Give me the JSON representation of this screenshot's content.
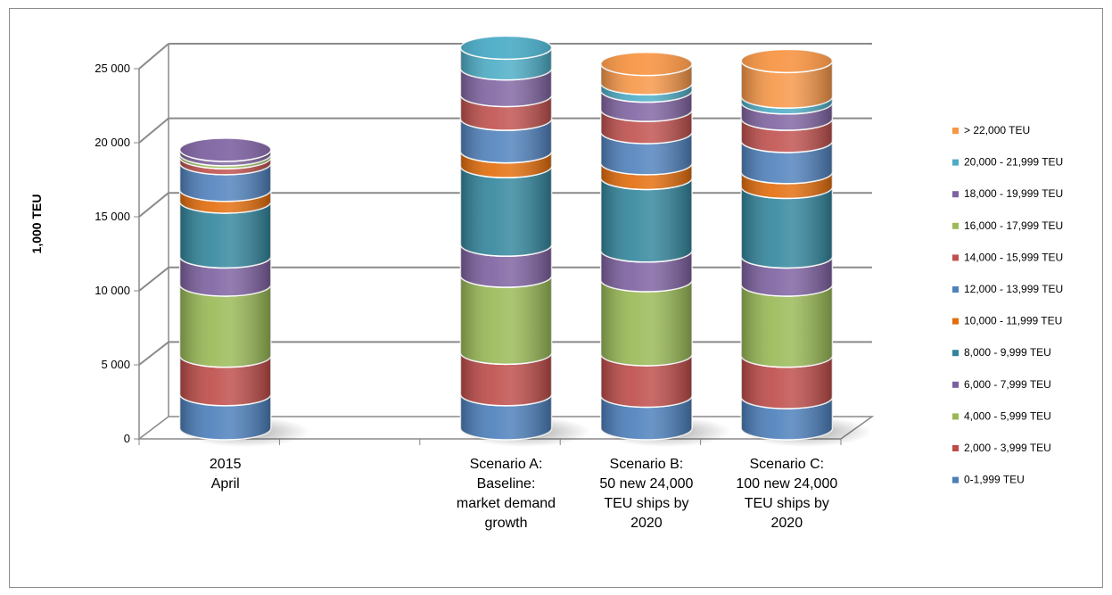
{
  "chart_data": {
    "type": "bar",
    "stacked": true,
    "style": "3d-cylinder",
    "title": "",
    "ylabel": "1,000 TEU",
    "xlabel": "",
    "ylim": [
      0,
      25000
    ],
    "yticks": [
      0,
      5000,
      10000,
      15000,
      20000,
      25000
    ],
    "ytick_labels": [
      "0",
      "5 000",
      "10 000",
      "15 000",
      "20 000",
      "25 000"
    ],
    "grid": true,
    "legend_position": "right",
    "categories": [
      [
        "2015",
        "April"
      ],
      [],
      [
        "Scenario A:",
        "Baseline:",
        "market demand",
        "growth"
      ],
      [
        "Scenario B:",
        "50 new 24,000",
        "TEU ships by",
        "2020"
      ],
      [
        "Scenario C:",
        "100 new 24,000",
        "TEU ships by",
        "2020"
      ]
    ],
    "series": [
      {
        "name": "0-1,999 TEU",
        "color": "#4a7ebb",
        "values": [
          2300,
          null,
          2300,
          2200,
          2100
        ]
      },
      {
        "name": "2,000 - 3,999 TEU",
        "color": "#be4b48",
        "values": [
          2600,
          null,
          2800,
          2800,
          2800
        ]
      },
      {
        "name": "4,000 - 5,999 TEU",
        "color": "#98b954",
        "values": [
          4800,
          null,
          5200,
          5000,
          4800
        ]
      },
      {
        "name": "6,000 - 7,999 TEU",
        "color": "#7d60a0",
        "values": [
          1900,
          null,
          2100,
          2000,
          1900
        ]
      },
      {
        "name": "8,000 - 9,999 TEU",
        "color": "#31859c",
        "values": [
          3700,
          null,
          5300,
          4900,
          4700
        ]
      },
      {
        "name": "10,000 - 11,999 TEU",
        "color": "#e46c0a",
        "values": [
          800,
          null,
          1000,
          1000,
          1000
        ]
      },
      {
        "name": "12,000 - 13,999 TEU",
        "color": "#4f81bd",
        "values": [
          1800,
          null,
          2200,
          2100,
          2100
        ]
      },
      {
        "name": "14,000 - 15,999 TEU",
        "color": "#c0504d",
        "values": [
          400,
          null,
          1600,
          1500,
          1500
        ]
      },
      {
        "name": "16,000 - 17,999 TEU",
        "color": "#9bbb59",
        "values": [
          200,
          null,
          0,
          0,
          0
        ]
      },
      {
        "name": "18,000 - 19,999 TEU",
        "color": "#8064a2",
        "values": [
          300,
          null,
          1800,
          1300,
          1100
        ]
      },
      {
        "name": "20,000 - 21,999 TEU",
        "color": "#4bacc6",
        "values": [
          0,
          null,
          1400,
          500,
          400
        ]
      },
      {
        "name": "> 22,000 TEU",
        "color": "#f79646",
        "values": [
          0,
          null,
          0,
          1300,
          2400
        ]
      }
    ]
  }
}
